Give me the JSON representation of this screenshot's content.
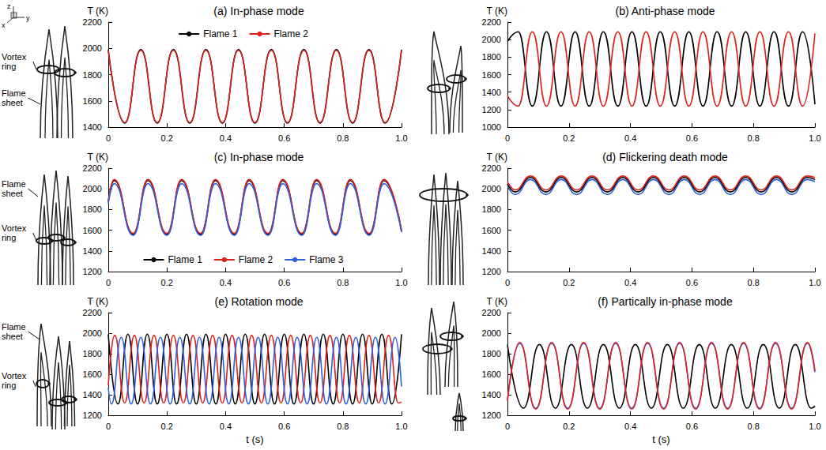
{
  "chart_data": [
    {
      "type": "line",
      "title": "(a) In-phase mode",
      "y_label": "T (K)",
      "xlim": [
        0,
        1
      ],
      "xticks": [
        0,
        0.2,
        0.4,
        0.6,
        0.8,
        {
          "value": 1,
          "label": "1.0"
        }
      ],
      "ylim": [
        1400,
        2200
      ],
      "yticks": [
        1400,
        1600,
        1800,
        2000,
        2200
      ],
      "legend": "top",
      "marker": "circle",
      "annotations": [
        "Vortex ring",
        "Flame sheet"
      ],
      "axis_icon": [
        "z",
        "x",
        "y"
      ],
      "series": [
        {
          "name": "Flame 1",
          "color": "#000000",
          "x": [
            0,
            0.056,
            0.111,
            0.167,
            0.222,
            0.278,
            0.333,
            0.389,
            0.444,
            0.5,
            0.556,
            0.611,
            0.667,
            0.722,
            0.778,
            0.833,
            0.889,
            0.944,
            1.0
          ],
          "values": [
            1990,
            1430,
            1990,
            1430,
            1990,
            1430,
            1990,
            1430,
            1990,
            1430,
            1990,
            1430,
            1990,
            1430,
            1990,
            1430,
            1990,
            1430,
            1990
          ]
        },
        {
          "name": "Flame 2",
          "color": "#e0201b",
          "x": [
            0,
            0.056,
            0.111,
            0.167,
            0.222,
            0.278,
            0.333,
            0.389,
            0.444,
            0.5,
            0.556,
            0.611,
            0.667,
            0.722,
            0.778,
            0.833,
            0.889,
            0.944,
            1.0
          ],
          "values": [
            1985,
            1435,
            1985,
            1435,
            1985,
            1435,
            1985,
            1435,
            1985,
            1435,
            1985,
            1435,
            1985,
            1435,
            1985,
            1435,
            1985,
            1435,
            1985
          ]
        }
      ]
    },
    {
      "type": "line",
      "title": "(b) Anti-phase mode",
      "y_label": "T (K)",
      "xlim": [
        0,
        1
      ],
      "xticks": [
        0,
        0.2,
        0.4,
        0.6,
        0.8,
        {
          "value": 1,
          "label": "1.0"
        }
      ],
      "ylim": [
        1000,
        2200
      ],
      "yticks": [
        1000,
        1200,
        1400,
        1600,
        1800,
        2000,
        2200
      ],
      "series": [
        {
          "color": "#000000",
          "x": [
            0,
            0.035,
            0.081,
            0.127,
            0.174,
            0.22,
            0.266,
            0.312,
            0.359,
            0.405,
            0.451,
            0.497,
            0.544,
            0.59,
            0.636,
            0.682,
            0.729,
            0.775,
            0.821,
            0.867,
            0.914,
            0.96,
            1.0
          ],
          "values": [
            1975,
            2090,
            1240,
            2090,
            1240,
            2090,
            1240,
            2090,
            1240,
            2090,
            1240,
            2090,
            1240,
            2090,
            1240,
            2090,
            1240,
            2090,
            1240,
            2090,
            1240,
            2090,
            1260
          ]
        },
        {
          "color": "#e0201b",
          "x": [
            0,
            0.035,
            0.081,
            0.127,
            0.174,
            0.22,
            0.266,
            0.312,
            0.359,
            0.405,
            0.451,
            0.497,
            0.544,
            0.59,
            0.636,
            0.682,
            0.729,
            0.775,
            0.821,
            0.867,
            0.914,
            0.96,
            1.0
          ],
          "values": [
            1360,
            1240,
            2090,
            1240,
            2090,
            1240,
            2090,
            1240,
            2090,
            1240,
            2090,
            1240,
            2090,
            1240,
            2090,
            1240,
            2090,
            1240,
            2090,
            1240,
            2090,
            1240,
            2070
          ]
        }
      ]
    },
    {
      "type": "line",
      "title": "(c) In-phase mode",
      "y_label": "T (K)",
      "xlim": [
        0,
        1
      ],
      "xticks": [
        0,
        0.2,
        0.4,
        0.6,
        0.8,
        {
          "value": 1,
          "label": "1.0"
        }
      ],
      "ylim": [
        1200,
        2200
      ],
      "yticks": [
        1200,
        1400,
        1600,
        1800,
        2000,
        2200
      ],
      "legend": "bottom",
      "marker": "circle",
      "annotations": [
        "Flame sheet",
        "Vortex ring"
      ],
      "series": [
        {
          "name": "Flame 1",
          "color": "#000000",
          "x": [
            0,
            0.02,
            0.085,
            0.135,
            0.2,
            0.25,
            0.315,
            0.365,
            0.43,
            0.48,
            0.545,
            0.595,
            0.66,
            0.71,
            0.775,
            0.825,
            0.89,
            0.94,
            1.0
          ],
          "values": [
            1880,
            2080,
            1560,
            2080,
            1560,
            2080,
            1560,
            2080,
            1560,
            2080,
            1560,
            2080,
            1560,
            2080,
            1560,
            2080,
            1560,
            2080,
            1590
          ]
        },
        {
          "name": "Flame 2",
          "color": "#e0201b",
          "x": [
            0,
            0.02,
            0.085,
            0.135,
            0.2,
            0.25,
            0.315,
            0.365,
            0.43,
            0.48,
            0.545,
            0.595,
            0.66,
            0.71,
            0.775,
            0.825,
            0.89,
            0.94,
            1.0
          ],
          "values": [
            1870,
            2090,
            1570,
            2090,
            1570,
            2090,
            1570,
            2090,
            1570,
            2090,
            1570,
            2090,
            1570,
            2090,
            1570,
            2090,
            1570,
            2090,
            1600
          ]
        },
        {
          "name": "Flame 3",
          "color": "#2f5fe0",
          "x": [
            0,
            0.02,
            0.085,
            0.135,
            0.2,
            0.25,
            0.315,
            0.365,
            0.43,
            0.48,
            0.545,
            0.595,
            0.66,
            0.71,
            0.775,
            0.825,
            0.89,
            0.94,
            1.0
          ],
          "values": [
            1860,
            2050,
            1550,
            2050,
            1550,
            2050,
            1550,
            2050,
            1550,
            2050,
            1550,
            2050,
            1550,
            2050,
            1550,
            2050,
            1550,
            2050,
            1580
          ]
        }
      ]
    },
    {
      "type": "line",
      "title": "(d) Flickering death mode",
      "y_label": "T (K)",
      "xlim": [
        0,
        1
      ],
      "xticks": [
        0,
        0.2,
        0.4,
        0.6,
        0.8,
        {
          "value": 1,
          "label": "1.0"
        }
      ],
      "ylim": [
        1200,
        2200
      ],
      "yticks": [
        1200,
        1400,
        1600,
        1800,
        2000,
        2200
      ],
      "series": [
        {
          "color": "#2f5fe0",
          "x": [
            0,
            0.025,
            0.075,
            0.125,
            0.175,
            0.225,
            0.275,
            0.325,
            0.375,
            0.425,
            0.475,
            0.525,
            0.575,
            0.625,
            0.675,
            0.725,
            0.775,
            0.825,
            0.875,
            0.925,
            0.975,
            1.0
          ],
          "values": [
            2030,
            1945,
            2090,
            1945,
            2090,
            1945,
            2090,
            1945,
            2090,
            1945,
            2090,
            1945,
            2090,
            1945,
            2090,
            1945,
            2090,
            1945,
            2090,
            1945,
            2090,
            2070
          ]
        },
        {
          "color": "#000000",
          "x": [
            0,
            0.025,
            0.075,
            0.125,
            0.175,
            0.225,
            0.275,
            0.325,
            0.375,
            0.425,
            0.475,
            0.525,
            0.575,
            0.625,
            0.675,
            0.725,
            0.775,
            0.825,
            0.875,
            0.925,
            0.975,
            1.0
          ],
          "values": [
            2050,
            1970,
            2110,
            1970,
            2110,
            1970,
            2110,
            1970,
            2110,
            1970,
            2110,
            1970,
            2110,
            1970,
            2110,
            1970,
            2110,
            1970,
            2110,
            1970,
            2110,
            2090
          ]
        },
        {
          "color": "#e0201b",
          "x": [
            0,
            0.025,
            0.075,
            0.125,
            0.175,
            0.225,
            0.275,
            0.325,
            0.375,
            0.425,
            0.475,
            0.525,
            0.575,
            0.625,
            0.675,
            0.725,
            0.775,
            0.825,
            0.875,
            0.925,
            0.975,
            1.0
          ],
          "values": [
            2070,
            1990,
            2125,
            1990,
            2125,
            1990,
            2125,
            1990,
            2125,
            1990,
            2125,
            1990,
            2125,
            1990,
            2125,
            1990,
            2125,
            1990,
            2125,
            1990,
            2125,
            2110
          ]
        }
      ]
    },
    {
      "type": "line",
      "title": "(e) Rotation mode",
      "y_label": "T (K)",
      "x_label": "t (s)",
      "xlim": [
        0,
        1
      ],
      "xticks": [
        0,
        0.2,
        0.4,
        0.6,
        0.8,
        {
          "value": 1,
          "label": "1.0"
        }
      ],
      "ylim": [
        1200,
        2200
      ],
      "yticks": [
        1200,
        1400,
        1600,
        1800,
        2000,
        2200
      ],
      "annotations": [
        "Flame sheet",
        "Vortex ring"
      ],
      "series": [
        {
          "color": "#000000",
          "x": [
            0,
            0.033,
            0.067,
            0.1,
            0.133,
            0.167,
            0.2,
            0.233,
            0.267,
            0.3,
            0.333,
            0.367,
            0.4,
            0.433,
            0.467,
            0.5,
            0.533,
            0.567,
            0.6,
            0.633,
            0.667,
            0.7,
            0.733,
            0.767,
            0.8,
            0.833,
            0.867,
            0.9,
            0.933,
            0.967,
            1.0
          ],
          "values": [
            1990,
            1310,
            1990,
            1310,
            1990,
            1310,
            1990,
            1310,
            1990,
            1310,
            1990,
            1310,
            1990,
            1310,
            1990,
            1310,
            1990,
            1310,
            1990,
            1310,
            1990,
            1310,
            1990,
            1310,
            1990,
            1310,
            1990,
            1310,
            1990,
            1310,
            1990
          ]
        },
        {
          "color": "#e0201b",
          "x": [
            0,
            0.022,
            0.056,
            0.089,
            0.122,
            0.156,
            0.189,
            0.222,
            0.256,
            0.289,
            0.322,
            0.356,
            0.389,
            0.422,
            0.456,
            0.489,
            0.522,
            0.556,
            0.589,
            0.622,
            0.656,
            0.689,
            0.722,
            0.756,
            0.789,
            0.822,
            0.856,
            0.889,
            0.922,
            0.956,
            0.989,
            1.0
          ],
          "values": [
            1490,
            1980,
            1320,
            1980,
            1320,
            1980,
            1320,
            1980,
            1320,
            1980,
            1320,
            1980,
            1320,
            1980,
            1320,
            1980,
            1320,
            1980,
            1320,
            1980,
            1320,
            1980,
            1320,
            1980,
            1320,
            1980,
            1320,
            1980,
            1320,
            1980,
            1320,
            1330
          ]
        },
        {
          "color": "#2f5fe0",
          "x": [
            0,
            0.011,
            0.044,
            0.078,
            0.111,
            0.144,
            0.178,
            0.211,
            0.244,
            0.278,
            0.311,
            0.344,
            0.378,
            0.411,
            0.444,
            0.478,
            0.511,
            0.544,
            0.578,
            0.611,
            0.644,
            0.678,
            0.711,
            0.744,
            0.778,
            0.811,
            0.844,
            0.878,
            0.911,
            0.944,
            0.978,
            1.0
          ],
          "values": [
            1470,
            1310,
            1960,
            1310,
            1960,
            1310,
            1960,
            1310,
            1960,
            1310,
            1960,
            1310,
            1960,
            1310,
            1960,
            1310,
            1960,
            1310,
            1960,
            1310,
            1960,
            1310,
            1960,
            1310,
            1960,
            1310,
            1960,
            1310,
            1960,
            1310,
            1960,
            1480
          ]
        }
      ]
    },
    {
      "type": "line",
      "title": "(f) Partically in-phase mode",
      "y_label": "T (K)",
      "x_label": "t (s)",
      "xlim": [
        0,
        1
      ],
      "xticks": [
        0,
        0.2,
        0.4,
        0.6,
        0.8,
        {
          "value": 1,
          "label": "1.0"
        }
      ],
      "ylim": [
        1200,
        2200
      ],
      "yticks": [
        1200,
        1400,
        1600,
        1800,
        2000,
        2200
      ],
      "series": [
        {
          "color": "#000000",
          "x": [
            0,
            0.052,
            0.104,
            0.156,
            0.208,
            0.26,
            0.312,
            0.364,
            0.416,
            0.468,
            0.52,
            0.572,
            0.624,
            0.676,
            0.728,
            0.78,
            0.832,
            0.884,
            0.936,
            0.988,
            1.0
          ],
          "values": [
            1890,
            1270,
            1890,
            1270,
            1890,
            1270,
            1890,
            1270,
            1890,
            1270,
            1890,
            1270,
            1890,
            1270,
            1890,
            1270,
            1890,
            1270,
            1890,
            1270,
            1290
          ]
        },
        {
          "color": "#2f5fe0",
          "x": [
            0,
            0.04,
            0.092,
            0.144,
            0.196,
            0.248,
            0.3,
            0.352,
            0.404,
            0.456,
            0.508,
            0.56,
            0.612,
            0.664,
            0.716,
            0.768,
            0.82,
            0.872,
            0.924,
            0.976,
            1.0
          ],
          "values": [
            1350,
            1900,
            1270,
            1900,
            1270,
            1900,
            1270,
            1900,
            1270,
            1900,
            1270,
            1900,
            1270,
            1900,
            1270,
            1900,
            1270,
            1900,
            1270,
            1900,
            1620
          ]
        },
        {
          "color": "#e0201b",
          "x": [
            0,
            0.04,
            0.092,
            0.144,
            0.196,
            0.248,
            0.3,
            0.352,
            0.404,
            0.456,
            0.508,
            0.56,
            0.612,
            0.664,
            0.716,
            0.768,
            0.82,
            0.872,
            0.924,
            0.976,
            1.0
          ],
          "values": [
            1340,
            1910,
            1260,
            1910,
            1260,
            1910,
            1260,
            1910,
            1260,
            1910,
            1260,
            1910,
            1260,
            1910,
            1260,
            1910,
            1260,
            1910,
            1260,
            1910,
            1630
          ]
        }
      ]
    }
  ]
}
